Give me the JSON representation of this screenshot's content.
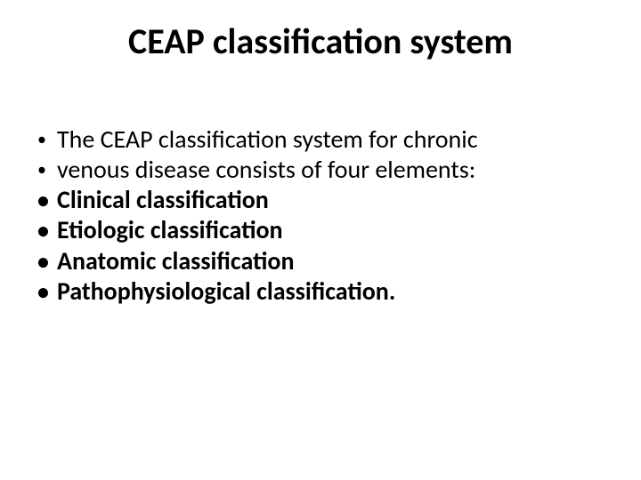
{
  "slide": {
    "title": "CEAP classification system",
    "title_fontsize": 40,
    "title_fontweight": 700,
    "body_fontsize": 28,
    "text_color": "#000000",
    "background_color": "#ffffff",
    "lines": [
      {
        "bullet": "•",
        "bullet_class": "dot",
        "text": " The CEAP classification system for chronic",
        "bold": false
      },
      {
        "bullet": "•",
        "bullet_class": "dot",
        "text": " venous disease consists of four elements:",
        "bold": false
      },
      {
        "bullet": "•",
        "bullet_class": "disc",
        "text": " Clinical classification",
        "bold": true
      },
      {
        "bullet": "•",
        "bullet_class": "disc",
        "text": " Etiologic classification",
        "bold": true
      },
      {
        "bullet": "•",
        "bullet_class": "disc",
        "text": " Anatomic classification",
        "bold": true
      },
      {
        "bullet": "•",
        "bullet_class": "disc",
        "text": " Pathophysiological classification.",
        "bold": true
      }
    ]
  }
}
